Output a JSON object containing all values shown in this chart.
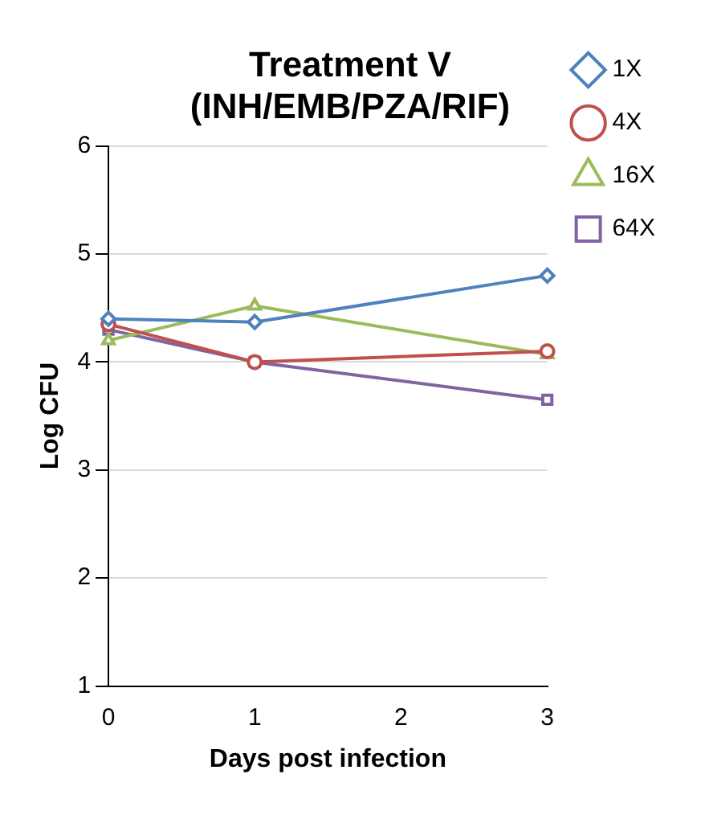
{
  "chart_data": {
    "type": "line",
    "title": "Treatment V\n(INH/EMB/PZA/RIF)",
    "xlabel": "Days post infection",
    "ylabel": "Log CFU",
    "x": [
      0,
      1,
      3
    ],
    "xlim": [
      0,
      3
    ],
    "xticks": [
      0,
      1,
      2,
      3
    ],
    "ylim": [
      1,
      6
    ],
    "yticks": [
      1,
      2,
      3,
      4,
      5,
      6
    ],
    "grid": "y",
    "legend": "right",
    "series": [
      {
        "name": "1X",
        "color": "#4f81bd",
        "marker": "diamond",
        "values": [
          4.4,
          4.37,
          4.8
        ]
      },
      {
        "name": "4X",
        "color": "#c0504d",
        "marker": "circle",
        "values": [
          4.35,
          4.0,
          4.1
        ]
      },
      {
        "name": "16X",
        "color": "#9bbb59",
        "marker": "triangle",
        "values": [
          4.2,
          4.52,
          4.07
        ]
      },
      {
        "name": "64X",
        "color": "#8064a2",
        "marker": "square",
        "values": [
          4.3,
          4.0,
          3.65
        ]
      }
    ]
  }
}
